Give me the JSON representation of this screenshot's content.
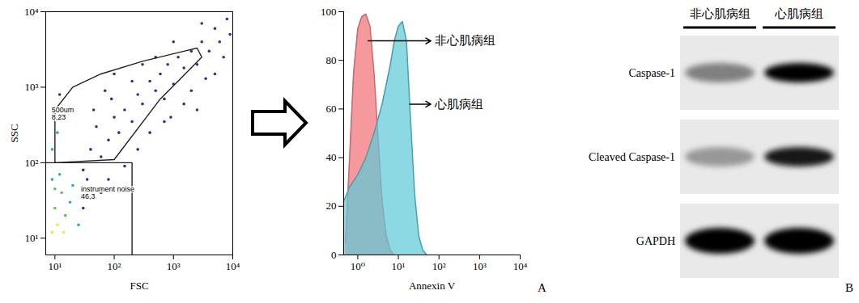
{
  "chart_data": [
    {
      "type": "scatter",
      "xlabel": "FSC",
      "ylabel": "SSC",
      "log": true,
      "xlim": [
        7,
        10000
      ],
      "ylim": [
        6,
        10000
      ],
      "xticks": [
        {
          "value": 10,
          "label": "10¹"
        },
        {
          "value": 100,
          "label": "10²"
        },
        {
          "value": 1000,
          "label": "10³"
        },
        {
          "value": 10000,
          "label": "10⁴"
        }
      ],
      "yticks": [
        {
          "value": 10,
          "label": "10¹"
        },
        {
          "value": 100,
          "label": "10²"
        },
        {
          "value": 1000,
          "label": "10³"
        },
        {
          "value": 10000,
          "label": "10⁴"
        }
      ],
      "x": [
        9,
        11,
        10,
        13,
        9,
        15,
        12,
        18,
        10,
        14,
        20,
        25,
        9,
        11,
        10,
        12,
        30,
        40,
        50,
        60,
        80,
        100,
        90,
        120,
        150,
        200,
        250,
        300,
        400,
        500,
        600,
        700,
        800,
        1000,
        1200,
        1500,
        2000,
        2500,
        3000,
        4000,
        5000,
        6000,
        8000,
        3500,
        2000,
        1500,
        900,
        700,
        400,
        250,
        150,
        60,
        35,
        45,
        70,
        200,
        500,
        1000,
        3000,
        7000,
        9000,
        2500,
        5000,
        30,
        80,
        100,
        300
      ],
      "y": [
        12,
        15,
        25,
        40,
        60,
        20,
        70,
        30,
        45,
        12,
        50,
        15,
        150,
        250,
        400,
        800,
        80,
        150,
        300,
        120,
        200,
        400,
        700,
        250,
        500,
        350,
        800,
        600,
        1200,
        900,
        1500,
        700,
        2000,
        1100,
        2500,
        1800,
        3000,
        2000,
        4000,
        3000,
        6000,
        4000,
        8000,
        1300,
        900,
        600,
        400,
        350,
        250,
        150,
        90,
        40,
        60,
        500,
        900,
        1200,
        2500,
        4000,
        7000,
        2500,
        5000,
        500,
        1500,
        25,
        60,
        1500,
        2000
      ],
      "colors": [
        "#f2e63a",
        "#f2e63a",
        "#5fc04f",
        "#5fc04f",
        "#29a9c6",
        "#5fc04f",
        "#29a9c6",
        "#29a9c6",
        "#5fc04f",
        "#f2e63a",
        "#29a9c6",
        "#29a9c6",
        "#29a9c6",
        "#29a9c6",
        "#2e3192",
        "#2e3192",
        "#2e3192",
        "#2e3192",
        "#2e3192",
        "#2e3192",
        "#2e3192",
        "#2e3192",
        "#2e3192",
        "#2e3192",
        "#2e3192",
        "#2e3192",
        "#2e3192",
        "#2e3192",
        "#2e3192",
        "#2e3192",
        "#2e3192",
        "#2e3192",
        "#2e3192",
        "#2e3192",
        "#2e3192",
        "#2e3192",
        "#2e3192",
        "#2e3192",
        "#2e3192",
        "#2e3192",
        "#2e3192",
        "#2e3192",
        "#2e3192",
        "#2e3192",
        "#2e3192",
        "#2e3192",
        "#2e3192",
        "#2e3192",
        "#2e3192",
        "#2e3192",
        "#2e3192",
        "#2e3192",
        "#2e3192",
        "#2e3192",
        "#2e3192",
        "#2e3192",
        "#2e3192",
        "#2e3192",
        "#2e3192",
        "#2e3192",
        "#2e3192",
        "#2e3192",
        "#2e3192",
        "#2e3192",
        "#2e3192",
        "#2e3192",
        "#2e3192"
      ],
      "gates": [
        {
          "label": "500um",
          "value": 8.23,
          "value_label": "8,23",
          "label_at": [
            8,
            450
          ],
          "points": [
            [
              10,
              100
            ],
            [
              10,
              500
            ],
            [
              20,
              1000
            ],
            [
              60,
              1500
            ],
            [
              300,
              2200
            ],
            [
              1500,
              3000
            ],
            [
              2500,
              3300
            ],
            [
              3000,
              2500
            ],
            [
              600,
              700
            ],
            [
              100,
              110
            ],
            [
              10,
              100
            ]
          ]
        },
        {
          "label": "instrument noise",
          "value": 46.3,
          "value_label": "46,3",
          "label_at": [
            25,
            40
          ],
          "points": [
            [
              7,
              100
            ],
            [
              200,
              100
            ],
            [
              200,
              6
            ]
          ]
        }
      ]
    },
    {
      "type": "area",
      "xlabel": "Annexin V",
      "log": "x",
      "xlim": [
        0.45,
        10000
      ],
      "ylim": [
        0,
        100
      ],
      "xticks": [
        {
          "value": 1,
          "label": "10⁰"
        },
        {
          "value": 10,
          "label": "10¹"
        },
        {
          "value": 100,
          "label": "10²"
        },
        {
          "value": 1000,
          "label": "10³"
        },
        {
          "value": 10000,
          "label": "10⁴"
        }
      ],
      "yticks": [
        0,
        20,
        40,
        60,
        80,
        100
      ],
      "series": [
        {
          "name": "非心肌病组",
          "color": "#f4878b",
          "x": [
            0.5,
            0.63,
            0.79,
            1,
            1.26,
            1.58,
            2,
            2.51,
            3.16,
            3.98,
            5.01,
            6.31,
            7.94
          ],
          "values": [
            5,
            40,
            75,
            93,
            98,
            99,
            94,
            75,
            48,
            22,
            8,
            2,
            0
          ],
          "arrow_from": [
            1.8,
            88
          ],
          "label_at": [
            63,
            88
          ]
        },
        {
          "name": "心肌病组",
          "color": "#5fc9d8",
          "x": [
            0.45,
            0.63,
            1,
            1.58,
            2.51,
            3.98,
            6.31,
            7.94,
            10,
            12.6,
            15.8,
            20,
            25.1,
            31.6,
            39.8,
            50.1
          ],
          "values": [
            22,
            28,
            33,
            40,
            50,
            62,
            78,
            88,
            94,
            96,
            88,
            55,
            25,
            8,
            2,
            0
          ],
          "arrow_from": [
            19,
            62
          ],
          "label_at": [
            63,
            62
          ]
        }
      ]
    }
  ],
  "blot": {
    "lanes": [
      "非心肌病组",
      "心肌病组"
    ],
    "rows": [
      {
        "label": "Caspase-1",
        "intensity": [
          0.45,
          1.0
        ]
      },
      {
        "label": "Cleaved Caspase-1",
        "intensity": [
          0.35,
          0.9
        ]
      },
      {
        "label": "GAPDH",
        "intensity": [
          1.0,
          1.0
        ]
      }
    ]
  },
  "panel_labels": [
    "A",
    "B"
  ]
}
